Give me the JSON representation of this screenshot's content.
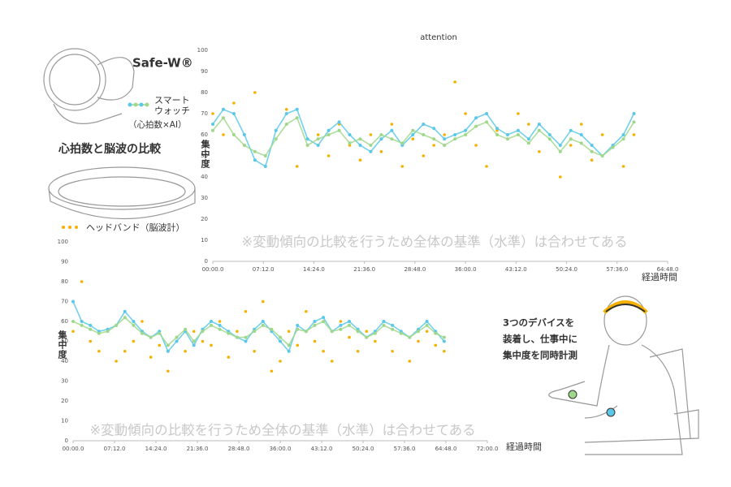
{
  "labels": {
    "watch_name": "Safe-W®",
    "watch_label": [
      "スマート",
      "ウォッチ"
    ],
    "watch_sub": "（心拍数×AI）",
    "heading": "心拍数と脳波の比較",
    "headband_label": "ヘッドバンド（脳波計）",
    "caption": [
      "3つのデバイスを",
      "装着し、仕事中に",
      "集中度を同時計測"
    ]
  },
  "chart_data": [
    {
      "type": "line",
      "title": "attention",
      "ylabel": "集中度",
      "xlabel": "経過時間",
      "annotation": "※変動傾向の比較を行うため全体の基準（水準）は合わせてある",
      "xlim": [
        0,
        3888
      ],
      "ylim": [
        0,
        100
      ],
      "grid": false,
      "xticks": [
        {
          "value": 0,
          "label": "00:00.0"
        },
        {
          "value": 432,
          "label": "07:12.0"
        },
        {
          "value": 864,
          "label": "14:24.0"
        },
        {
          "value": 1296,
          "label": "21:36.0"
        },
        {
          "value": 1728,
          "label": "28:48.0"
        },
        {
          "value": 2160,
          "label": "36:00.0"
        },
        {
          "value": 2592,
          "label": "43:12.0"
        },
        {
          "value": 3024,
          "label": "50:24.0"
        },
        {
          "value": 3456,
          "label": "57:36.0"
        },
        {
          "value": 3888,
          "label": "64:48.0"
        }
      ],
      "yticks": [
        0,
        10,
        20,
        30,
        40,
        50,
        60,
        70,
        80,
        90,
        100
      ],
      "x": [
        0,
        90,
        180,
        270,
        360,
        450,
        540,
        630,
        720,
        810,
        900,
        990,
        1080,
        1170,
        1260,
        1350,
        1440,
        1530,
        1620,
        1710,
        1800,
        1890,
        1980,
        2070,
        2160,
        2250,
        2340,
        2430,
        2520,
        2610,
        2700,
        2790,
        2880,
        2970,
        3060,
        3150,
        3240,
        3330,
        3420,
        3510,
        3600
      ],
      "series": [
        {
          "color": "#5bc8e8",
          "style": "line",
          "values": [
            65,
            72,
            70,
            60,
            48,
            45,
            62,
            70,
            72,
            58,
            55,
            62,
            66,
            60,
            55,
            52,
            58,
            62,
            55,
            60,
            65,
            63,
            58,
            60,
            62,
            68,
            70,
            63,
            60,
            62,
            58,
            65,
            60,
            55,
            62,
            60,
            55,
            50,
            55,
            60,
            70
          ]
        },
        {
          "color": "#9fd88a",
          "style": "line",
          "values": [
            62,
            68,
            60,
            55,
            52,
            50,
            58,
            65,
            68,
            55,
            58,
            60,
            62,
            56,
            58,
            55,
            60,
            58,
            56,
            62,
            60,
            58,
            55,
            58,
            60,
            64,
            66,
            60,
            58,
            60,
            56,
            62,
            58,
            52,
            58,
            56,
            52,
            50,
            54,
            58,
            66
          ]
        },
        {
          "color": "#f5b000",
          "style": "dots",
          "values": [
            70,
            60,
            75,
            55,
            80,
            50,
            58,
            72,
            45,
            55,
            60,
            50,
            65,
            55,
            48,
            60,
            52,
            65,
            45,
            58,
            50,
            55,
            60,
            85,
            70,
            55,
            45,
            62,
            58,
            70,
            65,
            52,
            60,
            40,
            55,
            65,
            48,
            60,
            55,
            45,
            60
          ]
        }
      ]
    },
    {
      "type": "line",
      "ylabel": "集中度",
      "xlabel": "経過時間",
      "annotation": "※変動傾向の比較を行うため全体の基準（水準）は合わせてある",
      "xlim": [
        0,
        4320
      ],
      "ylim": [
        0,
        100
      ],
      "grid": false,
      "xticks": [
        {
          "value": 0,
          "label": "00:00.0"
        },
        {
          "value": 432,
          "label": "07:12.0"
        },
        {
          "value": 864,
          "label": "14:24.0"
        },
        {
          "value": 1296,
          "label": "21:36.0"
        },
        {
          "value": 1728,
          "label": "28:48.0"
        },
        {
          "value": 2160,
          "label": "36:00.0"
        },
        {
          "value": 2592,
          "label": "43:12.0"
        },
        {
          "value": 3024,
          "label": "50:24.0"
        },
        {
          "value": 3456,
          "label": "57:36.0"
        },
        {
          "value": 3888,
          "label": "64:48.0"
        },
        {
          "value": 4320,
          "label": "72:00.0"
        }
      ],
      "yticks": [
        0,
        10,
        20,
        30,
        40,
        50,
        60,
        70,
        80,
        90,
        100
      ],
      "x": [
        0,
        90,
        180,
        270,
        360,
        450,
        540,
        630,
        720,
        810,
        900,
        990,
        1080,
        1170,
        1260,
        1350,
        1440,
        1530,
        1620,
        1710,
        1800,
        1890,
        1980,
        2070,
        2160,
        2250,
        2340,
        2430,
        2520,
        2610,
        2700,
        2790,
        2880,
        2970,
        3060,
        3150,
        3240,
        3330,
        3420,
        3510,
        3600,
        3690,
        3780,
        3870
      ],
      "series": [
        {
          "color": "#5bc8e8",
          "style": "line",
          "values": [
            70,
            60,
            58,
            55,
            56,
            58,
            65,
            60,
            55,
            52,
            55,
            45,
            50,
            55,
            48,
            56,
            60,
            58,
            55,
            52,
            50,
            56,
            60,
            55,
            50,
            45,
            58,
            55,
            60,
            62,
            55,
            58,
            60,
            56,
            52,
            55,
            60,
            58,
            55,
            52,
            56,
            60,
            55,
            50
          ]
        },
        {
          "color": "#9fd88a",
          "style": "line",
          "values": [
            60,
            58,
            56,
            54,
            55,
            58,
            62,
            58,
            54,
            52,
            54,
            48,
            52,
            56,
            50,
            55,
            58,
            56,
            54,
            52,
            52,
            55,
            58,
            56,
            52,
            48,
            56,
            55,
            58,
            60,
            55,
            56,
            58,
            55,
            52,
            54,
            58,
            56,
            54,
            52,
            55,
            58,
            54,
            52
          ]
        },
        {
          "color": "#f5b000",
          "style": "dots",
          "values": [
            55,
            80,
            50,
            45,
            55,
            40,
            45,
            50,
            60,
            42,
            48,
            35,
            50,
            45,
            55,
            50,
            48,
            60,
            42,
            55,
            65,
            45,
            70,
            35,
            40,
            55,
            48,
            65,
            50,
            45,
            40,
            60,
            52,
            45,
            55,
            50,
            60,
            45,
            55,
            40,
            50,
            55,
            48,
            45
          ]
        }
      ]
    }
  ]
}
